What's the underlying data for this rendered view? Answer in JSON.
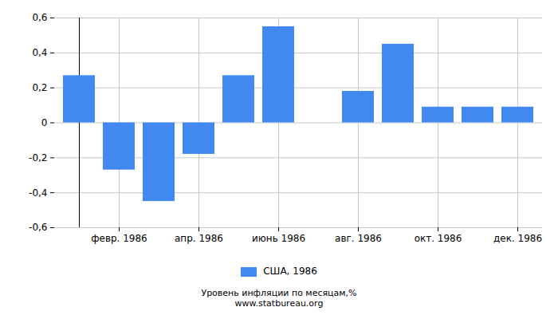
{
  "chart_data": {
    "type": "bar",
    "title": "Уровень инфляции по месяцам,%",
    "subtitle": "www.statbureau.org",
    "categories": [
      null,
      "февр. 1986",
      null,
      "апр. 1986",
      null,
      "июнь 1986",
      null,
      "авг. 1986",
      null,
      "окт. 1986",
      null,
      "дек. 1986"
    ],
    "series": [
      {
        "name": "США, 1986",
        "color": "#4189f0",
        "values": [
          0.27,
          -0.27,
          -0.45,
          -0.18,
          0.27,
          0.55,
          0,
          0.18,
          0.45,
          0.09,
          0.09,
          0.09
        ]
      }
    ],
    "ylim": [
      -0.6,
      0.6
    ],
    "yticks": [
      {
        "value": -0.6,
        "label": "-0,6"
      },
      {
        "value": -0.4,
        "label": "-0,4"
      },
      {
        "value": -0.2,
        "label": "-0,2"
      },
      0,
      {
        "value": 0.2,
        "label": "0,2"
      },
      {
        "value": 0.4,
        "label": "0,4"
      },
      {
        "value": 0.6,
        "label": "0,6"
      }
    ],
    "grid": true,
    "legend": "bottom"
  }
}
